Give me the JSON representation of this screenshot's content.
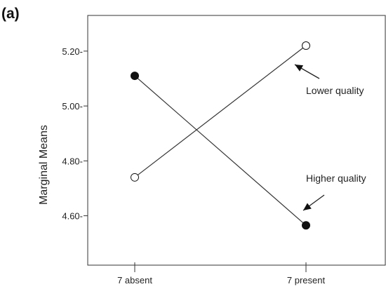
{
  "chart_data": {
    "type": "line",
    "panel_label": "(a)",
    "ylabel": "Marginal Means",
    "xlabel": "",
    "categories": [
      "7 absent",
      "7 present"
    ],
    "ylim": [
      4.42,
      5.33
    ],
    "yticks": [
      {
        "value": 4.6,
        "label": "4.60-"
      },
      {
        "value": 4.8,
        "label": "4.80-"
      },
      {
        "value": 5.0,
        "label": "5.00-"
      },
      {
        "value": 5.2,
        "label": "5.20-"
      }
    ],
    "series": [
      {
        "key": "lower",
        "values": [
          4.74,
          5.22
        ],
        "marker": "open"
      },
      {
        "key": "higher",
        "values": [
          5.11,
          4.565
        ],
        "marker": "filled"
      }
    ],
    "annotations": [
      {
        "key": "lower",
        "text": "Lower quality",
        "target_series": 0,
        "target_index": 1
      },
      {
        "key": "higher",
        "text": "Higher quality",
        "target_series": 1,
        "target_index": 1
      }
    ],
    "grid": false,
    "colors": {
      "line": "#333333",
      "marker_stroke": "#111111",
      "marker_fill_filled": "#111111",
      "marker_fill_open": "#ffffff"
    }
  }
}
